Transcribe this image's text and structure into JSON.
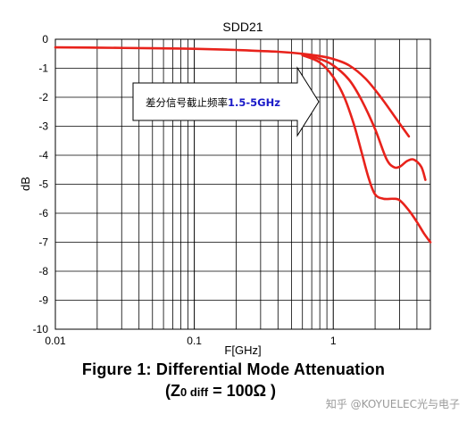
{
  "chart_data": {
    "type": "line",
    "title": "SDD21",
    "xlabel": "F[GHz]",
    "ylabel": "dB",
    "xscale": "log",
    "xlim": [
      0.01,
      5
    ],
    "ylim": [
      -10,
      0
    ],
    "x_tick_labels": [
      "0.01",
      "0.1",
      "1"
    ],
    "y_tick_labels": [
      "0",
      "-1",
      "-2",
      "-3",
      "-4",
      "-5",
      "-6",
      "-7",
      "-8",
      "-9",
      "-10"
    ],
    "grid": true,
    "series": [
      {
        "color": "#e8221b",
        "x": [
          0.01,
          0.02,
          0.05,
          0.1,
          0.2,
          0.4,
          0.6,
          0.8,
          1.0,
          1.3,
          1.7,
          2.2,
          2.8,
          3.5
        ],
        "y": [
          -0.28,
          -0.29,
          -0.31,
          -0.33,
          -0.37,
          -0.43,
          -0.5,
          -0.58,
          -0.68,
          -0.9,
          -1.35,
          -2.0,
          -2.7,
          -3.35
        ]
      },
      {
        "color": "#e8221b",
        "x": [
          0.6,
          0.8,
          1.0,
          1.3,
          1.6,
          2.0,
          2.4,
          2.7,
          3.0,
          3.4,
          3.8,
          4.3,
          4.6
        ],
        "y": [
          -0.52,
          -0.68,
          -0.9,
          -1.4,
          -2.1,
          -3.1,
          -4.1,
          -4.4,
          -4.4,
          -4.2,
          -4.15,
          -4.4,
          -4.85
        ]
      },
      {
        "color": "#e8221b",
        "x": [
          0.6,
          0.8,
          1.0,
          1.2,
          1.4,
          1.6,
          1.8,
          2.0,
          2.3,
          2.7,
          3.0,
          3.5,
          4.0,
          4.5,
          5.0
        ],
        "y": [
          -0.55,
          -0.8,
          -1.3,
          -2.0,
          -2.9,
          -3.9,
          -4.8,
          -5.35,
          -5.5,
          -5.5,
          -5.55,
          -5.9,
          -6.3,
          -6.7,
          -7.0
        ]
      }
    ],
    "annotation": {
      "prefix": "差分信号截止频率",
      "highlight": "1.5-5GHz",
      "highlight_color": "#1a1ac8"
    }
  },
  "caption": {
    "line1": "Figure 1:  Differential Mode Attenuation",
    "line2_open": "(Z",
    "line2_sub": "0 diff",
    "line2_rest": " = 100Ω )"
  },
  "watermark": "知乎 @KOYUELEC光与电子"
}
